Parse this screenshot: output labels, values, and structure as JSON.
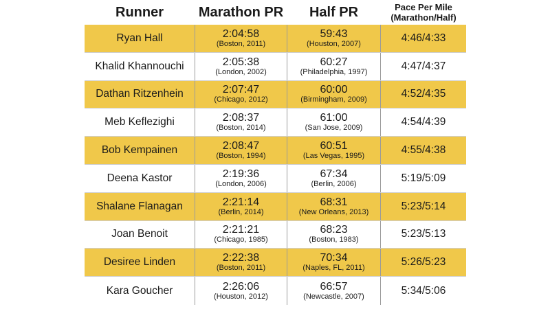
{
  "chart_data": {
    "type": "table",
    "columns": [
      "Runner",
      "Marathon PR",
      "Half PR",
      "Pace Per Mile",
      "(Marathon/Half)"
    ],
    "rows": [
      {
        "runner": "Ryan Hall",
        "marathon_time": "2:04:58",
        "marathon_race": "(Boston, 2011)",
        "half_time": "59:43",
        "half_race": "(Houston, 2007)",
        "pace": "4:46/4:33"
      },
      {
        "runner": "Khalid Khannouchi",
        "marathon_time": "2:05:38",
        "marathon_race": "(London, 2002)",
        "half_time": "60:27",
        "half_race": "(Philadelphia, 1997)",
        "pace": "4:47/4:37"
      },
      {
        "runner": "Dathan Ritzenhein",
        "marathon_time": "2:07:47",
        "marathon_race": "(Chicago, 2012)",
        "half_time": "60:00",
        "half_race": "(Birmingham, 2009)",
        "pace": "4:52/4:35"
      },
      {
        "runner": "Meb Keflezighi",
        "marathon_time": "2:08:37",
        "marathon_race": "(Boston, 2014)",
        "half_time": "61:00",
        "half_race": "(San Jose, 2009)",
        "pace": "4:54/4:39"
      },
      {
        "runner": "Bob Kempainen",
        "marathon_time": "2:08:47",
        "marathon_race": "(Boston, 1994)",
        "half_time": "60:51",
        "half_race": "(Las Vegas, 1995)",
        "pace": "4:55/4:38"
      },
      {
        "runner": "Deena Kastor",
        "marathon_time": "2:19:36",
        "marathon_race": "(London, 2006)",
        "half_time": "67:34",
        "half_race": "(Berlin, 2006)",
        "pace": "5:19/5:09"
      },
      {
        "runner": "Shalane Flanagan",
        "marathon_time": "2:21:14",
        "marathon_race": "(Berlin, 2014)",
        "half_time": "68:31",
        "half_race": "(New Orleans, 2013)",
        "pace": "5:23/5:14"
      },
      {
        "runner": "Joan Benoit",
        "marathon_time": "2:21:21",
        "marathon_race": "(Chicago, 1985)",
        "half_time": "68:23",
        "half_race": "(Boston, 1983)",
        "pace": "5:23/5:13"
      },
      {
        "runner": "Desiree Linden",
        "marathon_time": "2:22:38",
        "marathon_race": "(Boston, 2011)",
        "half_time": "70:34",
        "half_race": "(Naples, FL, 2011)",
        "pace": "5:26/5:23"
      },
      {
        "runner": "Kara Goucher",
        "marathon_time": "2:26:06",
        "marathon_race": "(Houston, 2012)",
        "half_time": "66:57",
        "half_race": "(Newcastle, 2007)",
        "pace": "5:34/5:06"
      }
    ]
  },
  "colors": {
    "row_highlight": "#f0c84a",
    "text": "#1a1a1a",
    "divider": "#9a9a9a"
  }
}
